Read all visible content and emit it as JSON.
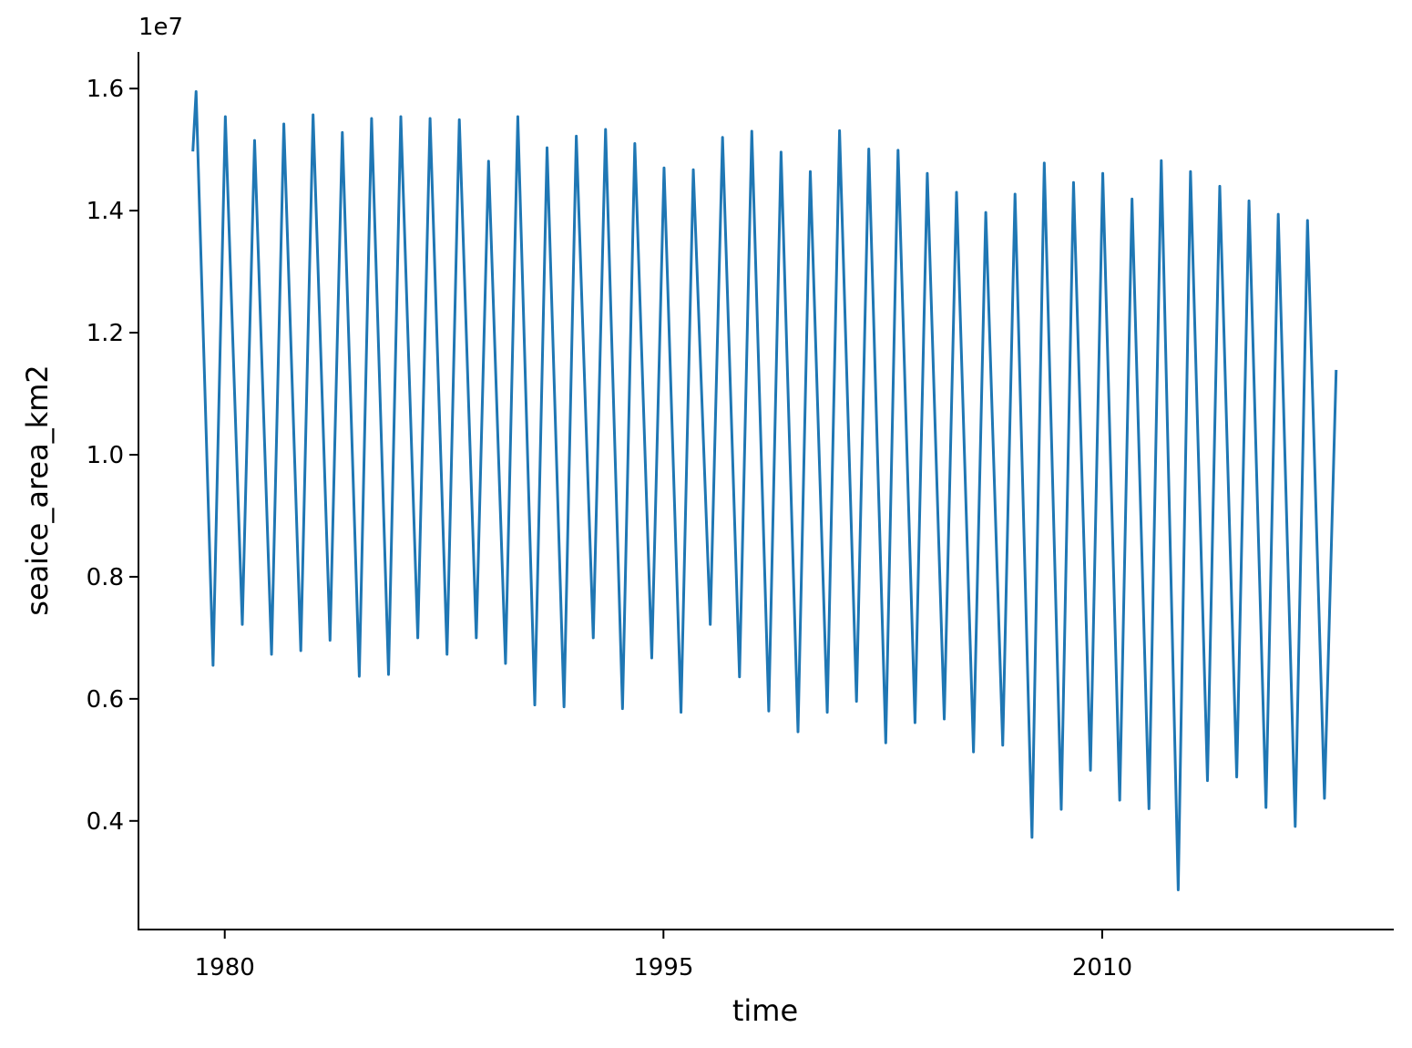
{
  "chart_data": {
    "type": "line",
    "x_label": "time",
    "y_label": "seaice_area_km2",
    "y_offset_label": "1e7",
    "x": [
      1978.91,
      1979.02,
      1979.6,
      1980.02,
      1980.6,
      1981.02,
      1981.6,
      1982.02,
      1982.6,
      1983.02,
      1983.6,
      1984.02,
      1984.6,
      1985.02,
      1985.6,
      1986.02,
      1986.6,
      1987.02,
      1987.6,
      1988.02,
      1988.6,
      1989.02,
      1989.6,
      1990.02,
      1990.6,
      1991.02,
      1991.6,
      1992.02,
      1992.6,
      1993.02,
      1993.6,
      1994.02,
      1994.6,
      1995.02,
      1995.6,
      1996.02,
      1996.6,
      1997.02,
      1997.6,
      1998.02,
      1998.6,
      1999.02,
      1999.6,
      2000.02,
      2000.6,
      2001.02,
      2001.6,
      2002.02,
      2002.6,
      2003.02,
      2003.6,
      2004.02,
      2004.6,
      2005.02,
      2005.6,
      2006.02,
      2006.6,
      2007.02,
      2007.6,
      2008.02,
      2008.6,
      2009.02,
      2009.6,
      2010.02,
      2010.6,
      2011.02,
      2011.6,
      2012.02,
      2012.6,
      2013.02,
      2013.6,
      2014.02,
      2014.6,
      2015.02,
      2015.6,
      2016.02,
      2016.6,
      2017.02,
      2017.6,
      2018.0
    ],
    "series": [
      {
        "name": "seaice_area_km2",
        "color": "#1f77b4",
        "values": [
          1.497,
          1.595,
          0.655,
          1.554,
          0.722,
          1.515,
          0.673,
          1.542,
          0.679,
          1.557,
          0.696,
          1.528,
          0.637,
          1.551,
          0.64,
          1.554,
          0.7,
          1.551,
          0.673,
          1.549,
          0.7,
          1.481,
          0.658,
          1.554,
          0.59,
          1.503,
          0.587,
          1.522,
          0.7,
          1.533,
          0.584,
          1.51,
          0.667,
          1.47,
          0.578,
          1.467,
          0.722,
          1.52,
          0.636,
          1.53,
          0.58,
          1.496,
          0.546,
          1.464,
          0.578,
          1.531,
          0.596,
          1.501,
          0.528,
          1.499,
          0.561,
          1.461,
          0.567,
          1.43,
          0.513,
          1.397,
          0.524,
          1.427,
          0.373,
          1.478,
          0.419,
          1.446,
          0.483,
          1.461,
          0.434,
          1.419,
          0.42,
          1.482,
          0.287,
          1.464,
          0.466,
          1.44,
          0.472,
          1.416,
          0.422,
          1.394,
          0.391,
          1.384,
          0.437,
          1.139
        ]
      }
    ],
    "xlim": [
      1977.05,
      2019.97
    ],
    "xticks": [
      1980,
      1995,
      2010
    ],
    "ylim": [
      0.222,
      1.66
    ],
    "yticks": [
      0.4,
      0.6,
      0.8,
      {
        "value": 1,
        "label": "1.0"
      },
      1.2,
      1.4,
      1.6
    ],
    "grid": false
  }
}
